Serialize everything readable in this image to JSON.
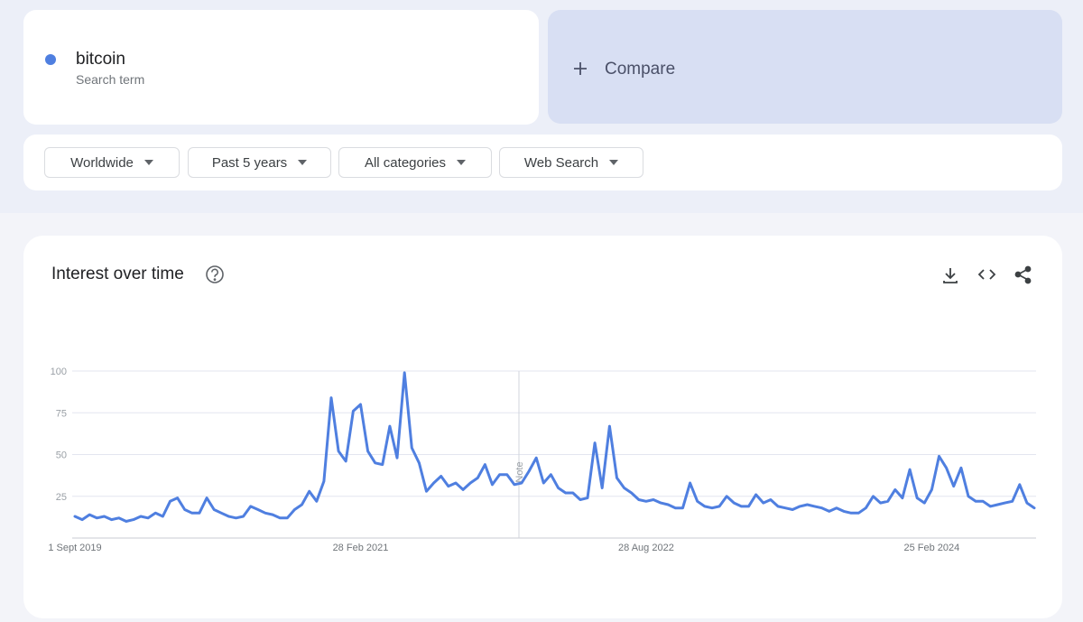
{
  "search": {
    "subtitle": "Search term"
  },
  "compare": "Compare",
  "filters": [
    "Worldwide",
    "Past 5 years",
    "All categories",
    "Web Search"
  ],
  "chart_data": {
    "type": "line",
    "title": "Interest over time",
    "annotation": "Note",
    "categories": [
      "1 Sept 2019",
      null,
      null,
      null,
      null,
      null,
      null,
      null,
      null,
      null,
      null,
      null,
      null,
      null,
      null,
      null,
      null,
      null,
      null,
      null,
      null,
      null,
      null,
      null,
      null,
      null,
      null,
      null,
      null,
      null,
      null,
      null,
      null,
      null,
      null,
      null,
      null,
      null,
      null,
      "28 Feb 2021",
      null,
      null,
      null,
      null,
      null,
      null,
      null,
      null,
      null,
      null,
      null,
      null,
      null,
      null,
      null,
      null,
      null,
      null,
      null,
      null,
      null,
      null,
      null,
      null,
      null,
      null,
      null,
      null,
      null,
      null,
      null,
      null,
      null,
      null,
      null,
      null,
      null,
      null,
      "28 Aug 2022",
      null,
      null,
      null,
      null,
      null,
      null,
      null,
      null,
      null,
      null,
      null,
      null,
      null,
      null,
      null,
      null,
      null,
      null,
      null,
      null,
      null,
      null,
      null,
      null,
      null,
      null,
      null,
      null,
      null,
      null,
      null,
      null,
      null,
      null,
      null,
      null,
      null,
      null,
      "25 Feb 2024",
      null,
      null,
      null,
      null,
      null,
      null,
      null,
      null,
      null,
      null,
      null,
      null,
      null,
      null
    ],
    "series": [
      {
        "name": "bitcoin",
        "color": "#4f7fe0",
        "values": [
          13,
          11,
          14,
          12,
          13,
          11,
          12,
          10,
          11,
          13,
          12,
          15,
          13,
          22,
          24,
          17,
          15,
          15,
          24,
          17,
          15,
          13,
          12,
          13,
          19,
          17,
          15,
          14,
          12,
          12,
          17,
          20,
          28,
          22,
          34,
          84,
          52,
          46,
          76,
          80,
          52,
          45,
          44,
          67,
          48,
          99,
          54,
          45,
          28,
          33,
          37,
          31,
          33,
          29,
          33,
          36,
          44,
          32,
          38,
          38,
          32,
          33,
          40,
          48,
          33,
          38,
          30,
          27,
          27,
          23,
          24,
          57,
          30,
          67,
          36,
          30,
          27,
          23,
          22,
          23,
          21,
          20,
          18,
          18,
          33,
          22,
          19,
          18,
          19,
          25,
          21,
          19,
          19,
          26,
          21,
          23,
          19,
          18,
          17,
          19,
          20,
          19,
          18,
          16,
          18,
          16,
          15,
          15,
          18,
          25,
          21,
          22,
          29,
          24,
          41,
          24,
          21,
          29,
          49,
          42,
          31,
          42,
          25,
          22,
          22,
          19,
          20,
          21,
          22,
          32,
          21,
          18
        ]
      }
    ],
    "ylim": [
      0,
      100
    ],
    "yticks": [
      25,
      50,
      75,
      100
    ],
    "grid": true
  }
}
